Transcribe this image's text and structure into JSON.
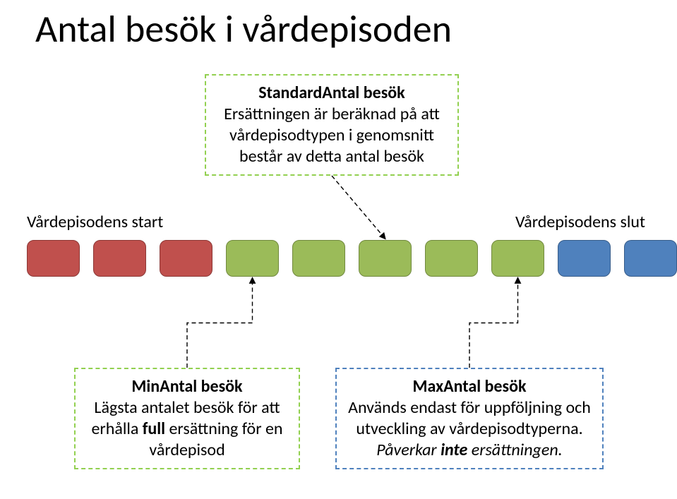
{
  "title": "Antal besök i vårdepisoden",
  "topCallout": {
    "heading": "StandardAntal besök",
    "body": "Ersättningen är beräknad på att vårdepisodtypen i genomsnitt består av detta antal besök"
  },
  "bottomLeftCallout": {
    "heading": "MinAntal besök",
    "body_pre": "Lägsta antalet besök för att erhålla ",
    "body_bold": "full",
    "body_post": " ersättning för en vårdepisod"
  },
  "bottomRightCallout": {
    "heading": "MaxAntal besök",
    "body_line1": "Används endast för uppföljning och utveckling av vårdepisodtyperna.",
    "body_line2_pre": "Påverkar ",
    "body_line2_bold": "inte",
    "body_line2_post": " ersättningen."
  },
  "axisStart": "Vårdepisodens start",
  "axisEnd": "Vårdepisodens slut",
  "boxes": {
    "count": 10,
    "colors": [
      "#c0504d",
      "#c0504d",
      "#c0504d",
      "#9bbb59",
      "#9bbb59",
      "#9bbb59",
      "#9bbb59",
      "#9bbb59",
      "#4f81bd",
      "#4f81bd"
    ],
    "borderColors": [
      "#8c3836",
      "#8c3836",
      "#8c3836",
      "#71893f",
      "#71893f",
      "#71893f",
      "#71893f",
      "#71893f",
      "#385d8a",
      "#385d8a"
    ],
    "width": 75,
    "height": 52,
    "gap": 19,
    "radius": 10
  },
  "connectors": {
    "strokeColor": "#000000",
    "strokeWidth": 1.4,
    "dash": "6,4",
    "arrowSize": 7
  }
}
